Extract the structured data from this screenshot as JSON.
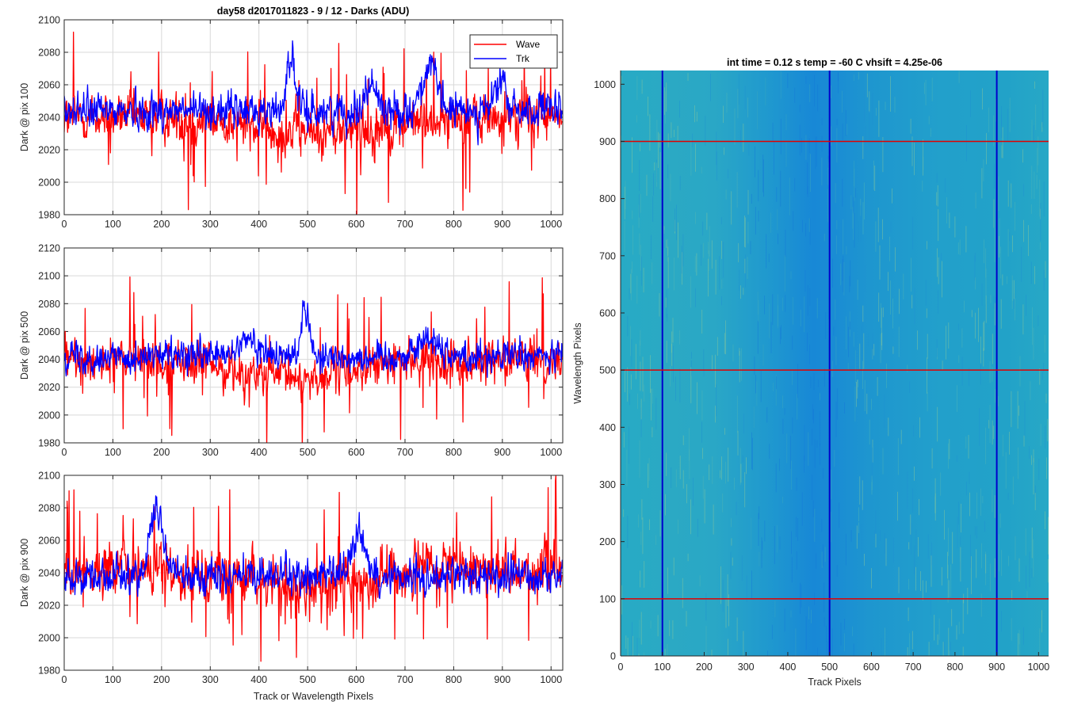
{
  "figure_title": "day58 d2017011823 - 9 / 12 - Darks (ADU)",
  "colors": {
    "wave": "#ff0000",
    "trk": "#0000ff",
    "grid": "#d9d9d9",
    "axis": "#262626",
    "heatmap_base": "#1a9fc8"
  },
  "chart_data": [
    {
      "type": "line",
      "ylabel": "Dark @ pix 100",
      "xlabel": "",
      "xlim": [
        0,
        1024
      ],
      "ylim": [
        1980,
        2100
      ],
      "xticks": [
        "0",
        "100",
        "200",
        "300",
        "400",
        "500",
        "600",
        "700",
        "800",
        "900",
        "1000"
      ],
      "yticks": [
        "1980",
        "2000",
        "2020",
        "2040",
        "2060",
        "2080",
        "2100"
      ],
      "grid": true,
      "legend": {
        "placement": "top-right",
        "entries": [
          "Wave",
          "Trk"
        ]
      },
      "series": [
        {
          "name": "Wave",
          "color": "#ff0000",
          "base": 2040,
          "noise": 9,
          "spikes": 60,
          "features": [
            {
              "x": 520,
              "amp": -10,
              "width": 180
            }
          ]
        },
        {
          "name": "Trk",
          "color": "#0000ff",
          "base": 2044,
          "noise": 7,
          "spikes": 0,
          "features": [
            {
              "x": 465,
              "amp": 34,
              "width": 12
            },
            {
              "x": 630,
              "amp": 16,
              "width": 18
            },
            {
              "x": 750,
              "amp": 26,
              "width": 22
            },
            {
              "x": 895,
              "amp": 18,
              "width": 15
            }
          ]
        }
      ]
    },
    {
      "type": "line",
      "ylabel": "Dark @ pix 500",
      "xlabel": "",
      "xlim": [
        0,
        1024
      ],
      "ylim": [
        1980,
        2120
      ],
      "xticks": [
        "0",
        "100",
        "200",
        "300",
        "400",
        "500",
        "600",
        "700",
        "800",
        "900",
        "1000"
      ],
      "yticks": [
        "1980",
        "2000",
        "2020",
        "2040",
        "2060",
        "2080",
        "2100",
        "2120"
      ],
      "grid": true,
      "series": [
        {
          "name": "Wave",
          "color": "#ff0000",
          "base": 2040,
          "noise": 9,
          "spikes": 55,
          "features": [
            {
              "x": 470,
              "amp": -14,
              "width": 160
            }
          ]
        },
        {
          "name": "Trk",
          "color": "#0000ff",
          "base": 2042,
          "noise": 7,
          "spikes": 0,
          "features": [
            {
              "x": 495,
              "amp": 38,
              "width": 12
            },
            {
              "x": 380,
              "amp": 12,
              "width": 25
            },
            {
              "x": 750,
              "amp": 14,
              "width": 30
            }
          ]
        }
      ]
    },
    {
      "type": "line",
      "ylabel": "Dark @ pix 900",
      "xlabel": "Track or Wavelength Pixels",
      "xlim": [
        0,
        1024
      ],
      "ylim": [
        1980,
        2100
      ],
      "xticks": [
        "0",
        "100",
        "200",
        "300",
        "400",
        "500",
        "600",
        "700",
        "800",
        "900",
        "1000"
      ],
      "yticks": [
        "1980",
        "2000",
        "2020",
        "2040",
        "2060",
        "2080",
        "2100"
      ],
      "grid": true,
      "series": [
        {
          "name": "Wave",
          "color": "#ff0000",
          "base": 2042,
          "noise": 10,
          "spikes": 60,
          "features": [
            {
              "x": 500,
              "amp": -12,
              "width": 140
            }
          ]
        },
        {
          "name": "Trk",
          "color": "#0000ff",
          "base": 2038,
          "noise": 7,
          "spikes": 0,
          "features": [
            {
              "x": 190,
              "amp": 40,
              "width": 20
            },
            {
              "x": 605,
              "amp": 28,
              "width": 18
            }
          ]
        }
      ]
    },
    {
      "type": "heatmap",
      "title": "int time = 0.12 s    temp = -60 C    vhsift = 4.25e-06",
      "xlabel": "Track Pixels",
      "ylabel": "Wavelength Pixels",
      "xlim": [
        0,
        1024
      ],
      "ylim": [
        0,
        1024
      ],
      "xticks": [
        "0",
        "100",
        "200",
        "300",
        "400",
        "500",
        "600",
        "700",
        "800",
        "900",
        "1000"
      ],
      "yticks": [
        "0",
        "100",
        "200",
        "300",
        "400",
        "500",
        "600",
        "700",
        "800",
        "900",
        "1000"
      ],
      "vertical_markers": [
        100,
        500,
        900
      ],
      "horizontal_markers": [
        100,
        500,
        900
      ]
    }
  ]
}
